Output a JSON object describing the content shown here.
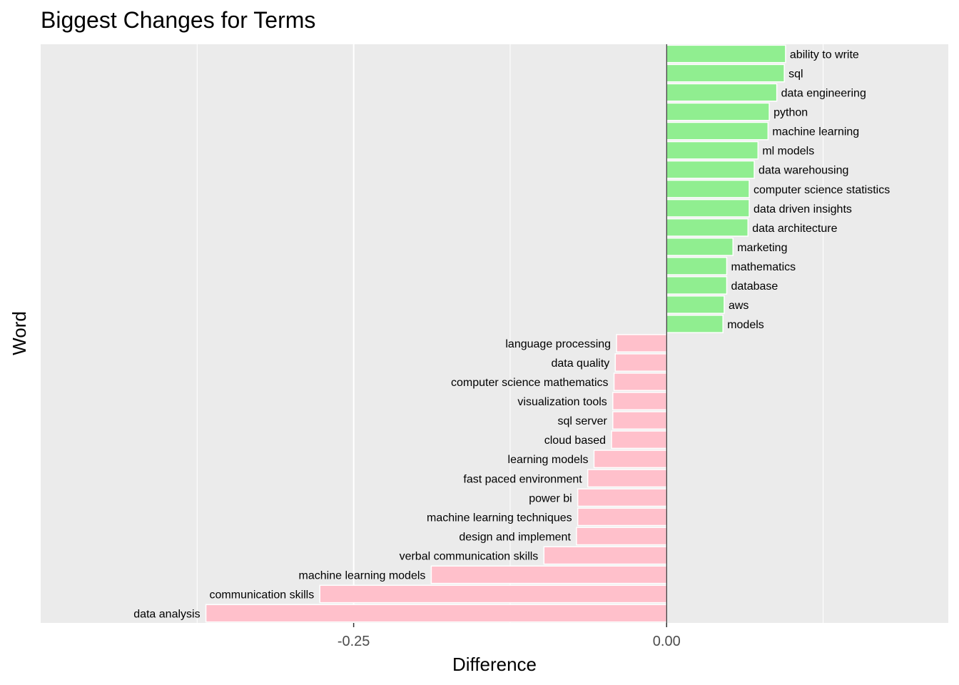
{
  "chart_data": {
    "type": "bar",
    "orientation": "horizontal",
    "title": "Biggest Changes for Terms",
    "xlabel": "Difference",
    "ylabel": "Word",
    "xlim": [
      -0.5,
      0.225
    ],
    "x_ticks": [
      -0.25,
      0.0
    ],
    "x_tick_labels": [
      "-0.25",
      "0.00"
    ],
    "grid": true,
    "legend": "none",
    "colors": {
      "positive": "#90ee90",
      "negative": "#ffc0cb",
      "panel": "#ebebeb",
      "grid": "#ffffff"
    },
    "categories": [
      "ability to write",
      "sql",
      "data engineering",
      "python",
      "machine learning",
      "ml models",
      "data warehousing",
      "computer science statistics",
      "data driven insights",
      "data architecture",
      "marketing",
      "mathematics",
      "database",
      "aws",
      "models",
      "language processing",
      "data quality",
      "computer science mathematics",
      "visualization tools",
      "sql server",
      "cloud based",
      "learning models",
      "fast paced environment",
      "power bi",
      "machine learning techniques",
      "design and implement",
      "verbal communication skills",
      "machine learning models",
      "communication skills",
      "data analysis"
    ],
    "values": [
      0.095,
      0.094,
      0.088,
      0.082,
      0.081,
      0.073,
      0.07,
      0.066,
      0.066,
      0.065,
      0.053,
      0.048,
      0.048,
      0.046,
      0.045,
      -0.04,
      -0.041,
      -0.042,
      -0.043,
      -0.043,
      -0.044,
      -0.058,
      -0.063,
      -0.071,
      -0.071,
      -0.072,
      -0.098,
      -0.188,
      -0.277,
      -0.368
    ]
  }
}
